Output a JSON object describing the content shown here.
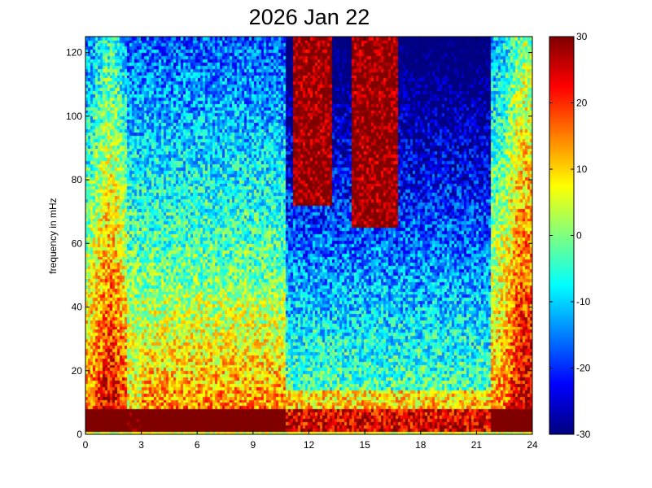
{
  "chart_data": {
    "type": "heatmap",
    "title": "2026 Jan 22",
    "xlabel": "",
    "ylabel": "frequency in mHz",
    "xlim": [
      0,
      24
    ],
    "ylim": [
      0,
      125
    ],
    "x_ticks": [
      "0",
      "3",
      "6",
      "9",
      "12",
      "15",
      "18",
      "21",
      "24"
    ],
    "y_ticks": [
      "0",
      "20",
      "40",
      "60",
      "80",
      "100",
      "120"
    ],
    "colorbar": {
      "colormap": "jet",
      "range": [
        -30,
        30
      ],
      "ticks": [
        "30",
        "20",
        "10",
        "0",
        "-10",
        "-20",
        "-30"
      ]
    },
    "description_regions": [
      {
        "x": [
          0,
          2
        ],
        "y": [
          0,
          125
        ],
        "level": "high"
      },
      {
        "x": [
          11,
          21.5
        ],
        "y": [
          60,
          125
        ],
        "level": "very-low"
      },
      {
        "x": [
          11.5,
          17
        ],
        "y": [
          70,
          125
        ],
        "level": "saturated-bands"
      },
      {
        "x": [
          3,
          10.5
        ],
        "y": [
          0,
          40
        ],
        "level": "high"
      },
      {
        "x": [
          0,
          24
        ],
        "y": [
          0,
          8
        ],
        "level": "saturated"
      },
      {
        "x": [
          22.5,
          24
        ],
        "y": [
          0,
          125
        ],
        "level": "high"
      }
    ]
  }
}
